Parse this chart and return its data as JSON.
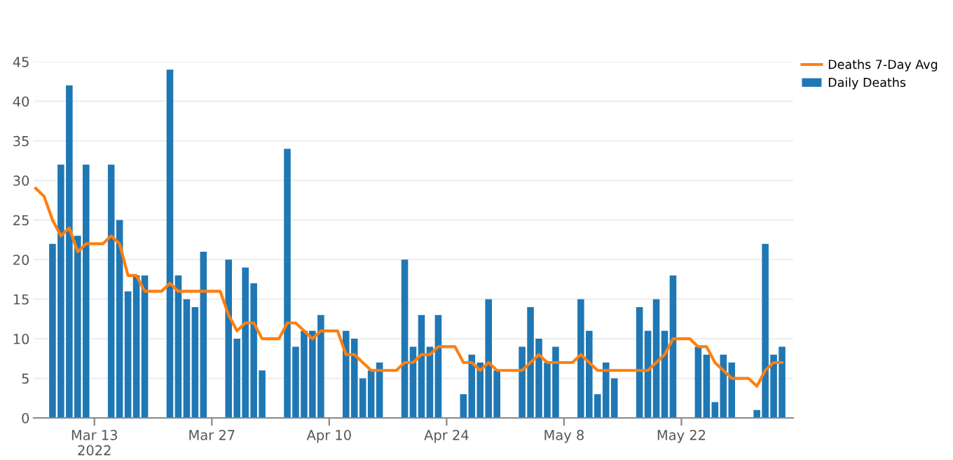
{
  "chart_data": {
    "type": "bar",
    "x": [
      "2022-03-06",
      "2022-03-07",
      "2022-03-08",
      "2022-03-09",
      "2022-03-10",
      "2022-03-11",
      "2022-03-12",
      "2022-03-13",
      "2022-03-14",
      "2022-03-15",
      "2022-03-16",
      "2022-03-17",
      "2022-03-18",
      "2022-03-19",
      "2022-03-20",
      "2022-03-21",
      "2022-03-22",
      "2022-03-23",
      "2022-03-24",
      "2022-03-25",
      "2022-03-26",
      "2022-03-27",
      "2022-03-28",
      "2022-03-29",
      "2022-03-30",
      "2022-03-31",
      "2022-04-01",
      "2022-04-02",
      "2022-04-03",
      "2022-04-04",
      "2022-04-05",
      "2022-04-06",
      "2022-04-07",
      "2022-04-08",
      "2022-04-09",
      "2022-04-10",
      "2022-04-11",
      "2022-04-12",
      "2022-04-13",
      "2022-04-14",
      "2022-04-15",
      "2022-04-16",
      "2022-04-17",
      "2022-04-18",
      "2022-04-19",
      "2022-04-20",
      "2022-04-21",
      "2022-04-22",
      "2022-04-23",
      "2022-04-24",
      "2022-04-25",
      "2022-04-26",
      "2022-04-27",
      "2022-04-28",
      "2022-04-29",
      "2022-04-30",
      "2022-05-01",
      "2022-05-02",
      "2022-05-03",
      "2022-05-04",
      "2022-05-05",
      "2022-05-06",
      "2022-05-07",
      "2022-05-08",
      "2022-05-09",
      "2022-05-10",
      "2022-05-11",
      "2022-05-12",
      "2022-05-13",
      "2022-05-14",
      "2022-05-15",
      "2022-05-16",
      "2022-05-17",
      "2022-05-18",
      "2022-05-19",
      "2022-05-20",
      "2022-05-21",
      "2022-05-22",
      "2022-05-23",
      "2022-05-24",
      "2022-05-25",
      "2022-05-26",
      "2022-05-27",
      "2022-05-28",
      "2022-05-29",
      "2022-05-30",
      "2022-05-31",
      "2022-06-01",
      "2022-06-02",
      "2022-06-03"
    ],
    "series": [
      {
        "name": "Deaths 7-Day Avg",
        "type": "line",
        "color": "#ff7f0e",
        "values": [
          29,
          28,
          25,
          23,
          24,
          21,
          22,
          22,
          22,
          23,
          22,
          18,
          18,
          16,
          16,
          16,
          17,
          16,
          16,
          16,
          16,
          16,
          16,
          13,
          11,
          12,
          12,
          10,
          10,
          10,
          12,
          12,
          11,
          10,
          11,
          11,
          11,
          8,
          8,
          7,
          6,
          6,
          6,
          6,
          7,
          7,
          8,
          8,
          9,
          9,
          9,
          7,
          7,
          6,
          7,
          6,
          6,
          6,
          6,
          7,
          8,
          7,
          7,
          7,
          7,
          8,
          7,
          6,
          6,
          6,
          6,
          6,
          6,
          6,
          7,
          8,
          10,
          10,
          10,
          9,
          9,
          7,
          6,
          5,
          5,
          5,
          4,
          6,
          7,
          7
        ]
      },
      {
        "name": "Daily Deaths",
        "color": "#1f77b4",
        "values": [
          null,
          null,
          22,
          32,
          42,
          23,
          32,
          null,
          null,
          32,
          25,
          16,
          18,
          18,
          null,
          null,
          44,
          18,
          15,
          14,
          21,
          null,
          null,
          20,
          10,
          19,
          17,
          6,
          null,
          null,
          34,
          9,
          11,
          11,
          13,
          null,
          null,
          11,
          10,
          5,
          6,
          7,
          null,
          null,
          20,
          9,
          13,
          9,
          13,
          null,
          null,
          3,
          8,
          7,
          15,
          6,
          null,
          null,
          9,
          14,
          10,
          7,
          9,
          null,
          null,
          15,
          11,
          3,
          7,
          5,
          null,
          null,
          14,
          11,
          15,
          11,
          18,
          null,
          null,
          9,
          8,
          2,
          8,
          7,
          null,
          null,
          1,
          22,
          8,
          9
        ]
      }
    ],
    "xlim": [
      "2022-03-05T18:00",
      "2022-06-04T08:00"
    ],
    "xticks": [
      {
        "value": "2022-03-13",
        "label": "Mar 13\n2022"
      },
      {
        "value": "2022-03-27",
        "label": "Mar 27"
      },
      {
        "value": "2022-04-10",
        "label": "Apr 10"
      },
      {
        "value": "2022-04-24",
        "label": "Apr 24"
      },
      {
        "value": "2022-05-08",
        "label": "May 8"
      },
      {
        "value": "2022-05-22",
        "label": "May 22"
      }
    ],
    "ylim": [
      0,
      45
    ],
    "yticks": [
      0,
      5,
      10,
      15,
      20,
      25,
      30,
      35,
      40,
      45
    ],
    "grid": "y",
    "legend": "top right"
  }
}
